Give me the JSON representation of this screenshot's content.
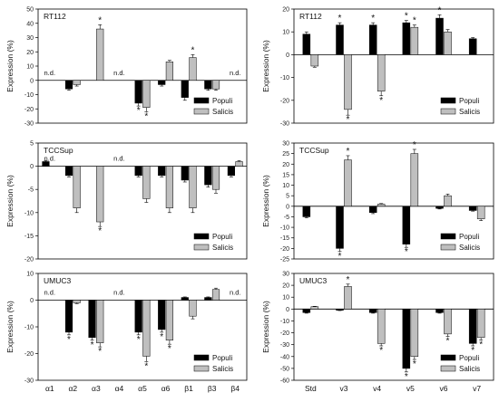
{
  "chart_data": [
    {
      "type": "bar",
      "cell_label": "RT112",
      "ylabel": "Expression (%)",
      "ylim": [
        -30,
        50
      ],
      "yticks": [
        -30,
        -20,
        -10,
        0,
        10,
        20,
        30,
        40,
        50
      ],
      "categories": [
        "α1",
        "α2",
        "α3",
        "α4",
        "α5",
        "α6",
        "β1",
        "β3",
        "β4"
      ],
      "series": [
        {
          "name": "Populi",
          "color": "#000000",
          "values": [
            0,
            -6,
            0,
            0,
            -16,
            -3,
            -12,
            -6,
            0
          ],
          "errors": [
            0,
            1,
            0,
            0,
            2,
            1,
            2,
            1,
            0
          ],
          "significant": [
            0,
            0,
            0,
            0,
            1,
            0,
            0,
            0,
            0
          ]
        },
        {
          "name": "Salicis",
          "color": "#bfbfbf",
          "values": [
            0,
            -3,
            36,
            0,
            -19,
            13,
            16,
            -6,
            0
          ],
          "errors": [
            0,
            1,
            3,
            0,
            3,
            1,
            2,
            1,
            0
          ],
          "significant": [
            0,
            0,
            1,
            0,
            1,
            0,
            1,
            0,
            0
          ]
        }
      ],
      "annotations": [
        {
          "category": "α1",
          "text": "n.d."
        },
        {
          "category": "α4",
          "text": "n.d."
        },
        {
          "category": "β4",
          "text": "n.d."
        }
      ],
      "show_xticklabels": false
    },
    {
      "type": "bar",
      "cell_label": "RT112",
      "ylabel": "Expression (%)",
      "ylim": [
        -30,
        20
      ],
      "yticks": [
        -30,
        -20,
        -10,
        0,
        10,
        20
      ],
      "categories": [
        "Std",
        "v3",
        "v4",
        "v5",
        "v6",
        "v7"
      ],
      "series": [
        {
          "name": "Populi",
          "color": "#000000",
          "values": [
            9,
            13,
            13,
            14,
            16,
            7
          ],
          "errors": [
            1,
            1,
            1,
            1,
            1.5,
            0.5
          ],
          "significant": [
            0,
            1,
            1,
            1,
            1,
            0
          ]
        },
        {
          "name": "Salicis",
          "color": "#bfbfbf",
          "values": [
            -5,
            -24,
            -16,
            12,
            10,
            0
          ],
          "errors": [
            0.5,
            2.5,
            2,
            1,
            1,
            0
          ],
          "significant": [
            0,
            1,
            1,
            1,
            0,
            0
          ]
        }
      ],
      "annotations": [],
      "show_xticklabels": false
    },
    {
      "type": "bar",
      "cell_label": "TCCSup",
      "ylabel": "Expression (%)",
      "ylim": [
        -20,
        5
      ],
      "yticks": [
        -20,
        -15,
        -10,
        -5,
        0,
        5
      ],
      "categories": [
        "α1",
        "α2",
        "α3",
        "α4",
        "α5",
        "α6",
        "β1",
        "β3",
        "β4"
      ],
      "series": [
        {
          "name": "Populi",
          "color": "#000000",
          "values": [
            1,
            -2,
            0,
            0,
            -2,
            -2,
            -3,
            -4,
            -2
          ],
          "errors": [
            0.2,
            0.3,
            0,
            0,
            0.3,
            0.3,
            0.4,
            0.5,
            0.3
          ],
          "significant": [
            0,
            0,
            0,
            0,
            0,
            0,
            0,
            0,
            0
          ]
        },
        {
          "name": "Salicis",
          "color": "#bfbfbf",
          "values": [
            0,
            -9,
            -12,
            0,
            -7,
            -9,
            -9,
            -5,
            1
          ],
          "errors": [
            0,
            1,
            1,
            0,
            0.8,
            1,
            1,
            0.8,
            0.2
          ],
          "significant": [
            0,
            0,
            1,
            0,
            0,
            0,
            0,
            0,
            0
          ]
        }
      ],
      "annotations": [
        {
          "category": "α1",
          "text": "n.d."
        },
        {
          "category": "α4",
          "text": "n.d."
        }
      ],
      "show_xticklabels": false
    },
    {
      "type": "bar",
      "cell_label": "TCCSup",
      "ylabel": "Expression (%)",
      "ylim": [
        -25,
        30
      ],
      "yticks": [
        -25,
        -20,
        -15,
        -10,
        -5,
        0,
        5,
        10,
        15,
        20,
        25,
        30
      ],
      "categories": [
        "Std",
        "v3",
        "v4",
        "v5",
        "v6",
        "v7"
      ],
      "series": [
        {
          "name": "Populi",
          "color": "#000000",
          "values": [
            -5,
            -20,
            -3,
            -18,
            -1,
            -2
          ],
          "errors": [
            0.5,
            1.5,
            0.5,
            1.5,
            0.3,
            0.3
          ],
          "significant": [
            0,
            1,
            0,
            1,
            0,
            0
          ]
        },
        {
          "name": "Salicis",
          "color": "#bfbfbf",
          "values": [
            0,
            22,
            1,
            25,
            5,
            -6
          ],
          "errors": [
            0,
            2,
            0.3,
            2,
            0.8,
            0.8
          ],
          "significant": [
            0,
            1,
            0,
            1,
            0,
            0
          ]
        }
      ],
      "annotations": [],
      "show_xticklabels": false
    },
    {
      "type": "bar",
      "cell_label": "UMUC3",
      "ylabel": "Expression (%)",
      "ylim": [
        -30,
        10
      ],
      "yticks": [
        -30,
        -20,
        -10,
        0,
        10
      ],
      "categories": [
        "α1",
        "α2",
        "α3",
        "α4",
        "α5",
        "α6",
        "β1",
        "β3",
        "β4"
      ],
      "series": [
        {
          "name": "Populi",
          "color": "#000000",
          "values": [
            0,
            -12,
            -14,
            0,
            -12,
            -11,
            1,
            1,
            0
          ],
          "errors": [
            0,
            1,
            1,
            0,
            1,
            1,
            0.2,
            0.2,
            0
          ],
          "significant": [
            0,
            1,
            1,
            0,
            1,
            1,
            0,
            0,
            0
          ]
        },
        {
          "name": "Salicis",
          "color": "#bfbfbf",
          "values": [
            0,
            -1,
            -16,
            0,
            -21,
            -15,
            -6,
            4,
            0
          ],
          "errors": [
            0,
            0.3,
            1.5,
            0,
            2,
            1.5,
            1,
            0.5,
            0
          ],
          "significant": [
            0,
            0,
            1,
            0,
            1,
            1,
            0,
            0,
            0
          ]
        }
      ],
      "annotations": [
        {
          "category": "α1",
          "text": "n.d."
        },
        {
          "category": "α4",
          "text": "n.d."
        },
        {
          "category": "β4",
          "text": "n.d."
        }
      ],
      "show_xticklabels": true
    },
    {
      "type": "bar",
      "cell_label": "UMUC3",
      "ylabel": "Expression (%)",
      "ylim": [
        -60,
        30
      ],
      "yticks": [
        -60,
        -50,
        -40,
        -30,
        -20,
        -10,
        0,
        10,
        20,
        30
      ],
      "categories": [
        "Std",
        "v3",
        "v4",
        "v5",
        "v6",
        "v7"
      ],
      "series": [
        {
          "name": "Populi",
          "color": "#000000",
          "values": [
            -3,
            -1,
            -3,
            -50,
            -3,
            -29
          ],
          "errors": [
            0.5,
            0.3,
            0.5,
            3,
            0.5,
            2
          ],
          "significant": [
            0,
            0,
            0,
            1,
            0,
            1
          ]
        },
        {
          "name": "Salicis",
          "color": "#bfbfbf",
          "values": [
            2,
            19,
            -29,
            -40,
            -21,
            -24
          ],
          "errors": [
            0.3,
            2,
            2,
            2.5,
            2,
            2
          ],
          "significant": [
            0,
            1,
            1,
            1,
            1,
            1
          ]
        }
      ],
      "annotations": [],
      "show_xticklabels": true
    }
  ],
  "significance_marker": "*",
  "colors": {
    "populi": "#000000",
    "salicis": "#bfbfbf",
    "axis": "#000000"
  }
}
